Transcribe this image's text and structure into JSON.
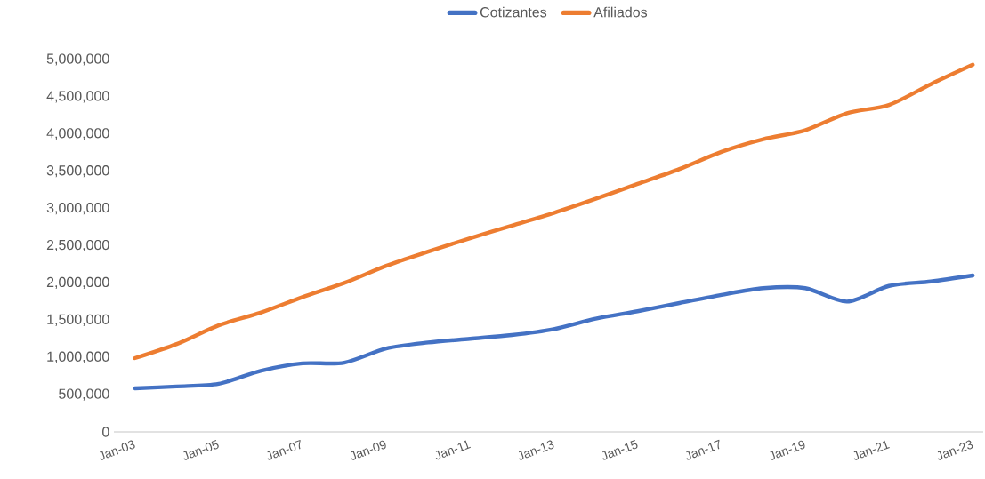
{
  "chart_data": {
    "type": "line",
    "x": [
      "2003-01",
      "2004-01",
      "2005-01",
      "2006-01",
      "2007-01",
      "2008-01",
      "2009-01",
      "2010-01",
      "2011-01",
      "2012-01",
      "2013-01",
      "2014-01",
      "2015-01",
      "2016-01",
      "2017-01",
      "2018-01",
      "2019-01",
      "2020-01",
      "2021-01",
      "2022-01",
      "2023-01"
    ],
    "series": [
      {
        "name": "Cotizantes",
        "color": "#4472c4",
        "values": [
          585000,
          610000,
          645000,
          820000,
          920000,
          930000,
          1120000,
          1200000,
          1250000,
          1300000,
          1380000,
          1520000,
          1620000,
          1730000,
          1840000,
          1930000,
          1930000,
          1750000,
          1960000,
          2020000,
          2100000
        ]
      },
      {
        "name": "Afiliados",
        "color": "#ed7d31",
        "values": [
          990000,
          1180000,
          1430000,
          1600000,
          1810000,
          2000000,
          2230000,
          2420000,
          2600000,
          2770000,
          2940000,
          3130000,
          3330000,
          3530000,
          3760000,
          3930000,
          4050000,
          4280000,
          4390000,
          4670000,
          4930000
        ]
      }
    ],
    "xlim": [
      "2002-07",
      "2023-04"
    ],
    "xticks": [
      {
        "value": "2003-01",
        "label": "Jan-03"
      },
      {
        "value": "2005-01",
        "label": "Jan-05"
      },
      {
        "value": "2007-01",
        "label": "Jan-07"
      },
      {
        "value": "2009-01",
        "label": "Jan-09"
      },
      {
        "value": "2011-01",
        "label": "Jan-11"
      },
      {
        "value": "2013-01",
        "label": "Jan-13"
      },
      {
        "value": "2015-01",
        "label": "Jan-15"
      },
      {
        "value": "2017-01",
        "label": "Jan-17"
      },
      {
        "value": "2019-01",
        "label": "Jan-19"
      },
      {
        "value": "2021-01",
        "label": "Jan-21"
      },
      {
        "value": "2023-01",
        "label": "Jan-23"
      }
    ],
    "ylim": [
      0,
      5000000
    ],
    "yticks": [
      0,
      {
        "value": 500000,
        "label": "500,000"
      },
      {
        "value": 1000000,
        "label": "1,000,000"
      },
      {
        "value": 1500000,
        "label": "1,500,000"
      },
      {
        "value": 2000000,
        "label": "2,000,000"
      },
      {
        "value": 2500000,
        "label": "2,500,000"
      },
      {
        "value": 3000000,
        "label": "3,000,000"
      },
      {
        "value": 3500000,
        "label": "3,500,000"
      },
      {
        "value": 4000000,
        "label": "4,000,000"
      },
      {
        "value": 4500000,
        "label": "4,500,000"
      },
      {
        "value": 5000000,
        "label": "5,000,000"
      }
    ],
    "legend": "top",
    "grid": false,
    "marker": "none",
    "line_style": "solid"
  }
}
